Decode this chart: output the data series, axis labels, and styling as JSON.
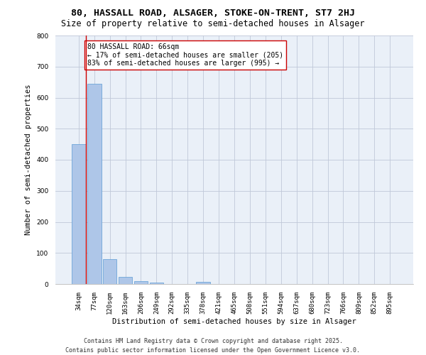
{
  "title_line1": "80, HASSALL ROAD, ALSAGER, STOKE-ON-TRENT, ST7 2HJ",
  "title_line2": "Size of property relative to semi-detached houses in Alsager",
  "xlabel": "Distribution of semi-detached houses by size in Alsager",
  "ylabel": "Number of semi-detached properties",
  "categories": [
    "34sqm",
    "77sqm",
    "120sqm",
    "163sqm",
    "206sqm",
    "249sqm",
    "292sqm",
    "335sqm",
    "378sqm",
    "421sqm",
    "465sqm",
    "508sqm",
    "551sqm",
    "594sqm",
    "637sqm",
    "680sqm",
    "723sqm",
    "766sqm",
    "809sqm",
    "852sqm",
    "895sqm"
  ],
  "values": [
    450,
    645,
    80,
    22,
    10,
    5,
    0,
    0,
    8,
    0,
    0,
    0,
    0,
    0,
    0,
    0,
    0,
    0,
    0,
    0,
    0
  ],
  "bar_color": "#aec6e8",
  "bar_edge_color": "#5b9bd5",
  "highlight_line_color": "#cc0000",
  "annotation_text": "80 HASSALL ROAD: 66sqm\n← 17% of semi-detached houses are smaller (205)\n83% of semi-detached houses are larger (995) →",
  "annotation_box_color": "#ffffff",
  "annotation_box_edge_color": "#cc0000",
  "ylim": [
    0,
    800
  ],
  "yticks": [
    0,
    100,
    200,
    300,
    400,
    500,
    600,
    700,
    800
  ],
  "grid_color": "#c0c8d8",
  "background_color": "#eaf0f8",
  "footer_line1": "Contains HM Land Registry data © Crown copyright and database right 2025.",
  "footer_line2": "Contains public sector information licensed under the Open Government Licence v3.0.",
  "title_fontsize": 9.5,
  "subtitle_fontsize": 8.5,
  "axis_label_fontsize": 7.5,
  "tick_fontsize": 6.5,
  "annotation_fontsize": 7,
  "footer_fontsize": 6
}
